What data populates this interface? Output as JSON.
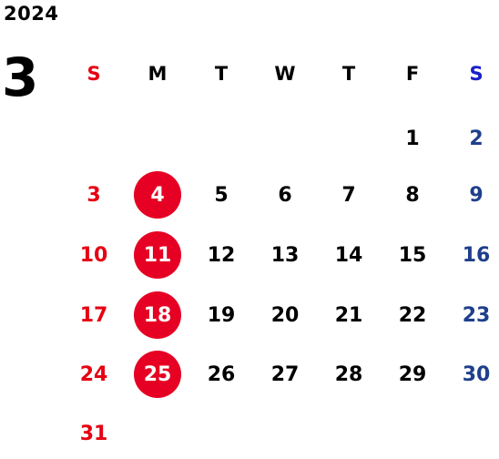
{
  "calendar": {
    "year": "2024",
    "month": "3",
    "weekdays": [
      "S",
      "M",
      "T",
      "W",
      "T",
      "F",
      "S"
    ],
    "weeks": [
      [
        "",
        "",
        "",
        "",
        "",
        "1",
        "2"
      ],
      [
        "3",
        "4",
        "5",
        "6",
        "7",
        "8",
        "9"
      ],
      [
        "10",
        "11",
        "12",
        "13",
        "14",
        "15",
        "16"
      ],
      [
        "17",
        "18",
        "19",
        "20",
        "21",
        "22",
        "23"
      ],
      [
        "24",
        "25",
        "26",
        "27",
        "28",
        "29",
        "30"
      ],
      [
        "31",
        "",
        "",
        "",
        "",
        "",
        ""
      ]
    ],
    "highlighted_days": [
      "4",
      "11",
      "18",
      "25"
    ]
  },
  "colors": {
    "sunday": "#e60012",
    "saturday": "#1e3f8c",
    "saturday_header": "#1a20c8",
    "highlight": "#e60023",
    "text": "#000000"
  }
}
